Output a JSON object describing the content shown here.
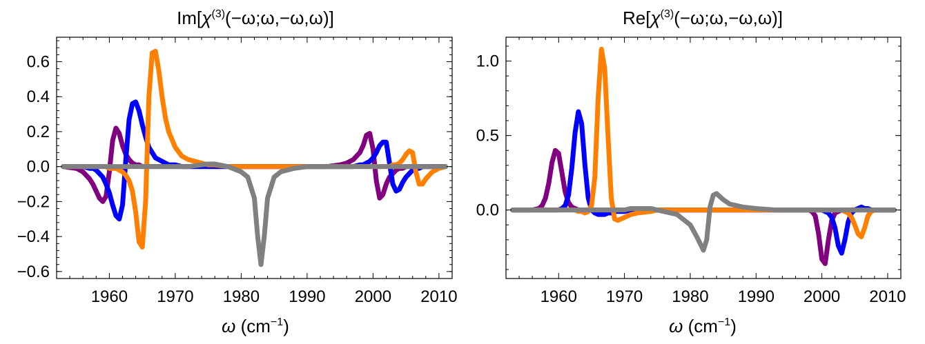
{
  "chart_data": [
    {
      "type": "line",
      "title": "Im[χ(3)(−ω;ω,−ω,ω)]",
      "title_parts": {
        "prefix": "Im[",
        "chi": "χ",
        "sup": "(3)",
        "args": "(−ω;ω,−ω,ω)]"
      },
      "xlabel": "ω (cm−1)",
      "xlabel_parts": {
        "omega": "ω",
        "unit": " (cm",
        "sup": "−1",
        "close": ")"
      },
      "ylabel": "",
      "xlim": [
        1952,
        2012
      ],
      "ylim": [
        -0.64,
        0.74
      ],
      "xticks": [
        1960,
        1970,
        1980,
        1990,
        2000,
        2010
      ],
      "xtick_labels": [
        "1960",
        "1970",
        "1980",
        "1990",
        "2000",
        "2010"
      ],
      "yticks": [
        -0.6,
        -0.4,
        -0.2,
        0.0,
        0.2,
        0.4,
        0.6
      ],
      "ytick_labels": [
        "−0.6",
        "−0.4",
        "−0.2",
        "0.0",
        "0.2",
        "0.4",
        "0.6"
      ],
      "grid": false,
      "legend": "none",
      "x": [
        1953,
        1955,
        1956,
        1957,
        1957.5,
        1958,
        1958.5,
        1959,
        1959.5,
        1960,
        1960.5,
        1961,
        1961.5,
        1962,
        1962.5,
        1963,
        1963.5,
        1964,
        1964.5,
        1965,
        1965.5,
        1966,
        1966.5,
        1967,
        1967.5,
        1968,
        1968.5,
        1969,
        1970,
        1971,
        1972,
        1974,
        1975,
        1976,
        1978,
        1980,
        1981,
        1982,
        1982.5,
        1983,
        1983.5,
        1984,
        1985,
        1986,
        1988,
        1990,
        1993,
        1995,
        1996,
        1997,
        1998,
        1998.5,
        1999,
        1999.5,
        2000,
        2000.5,
        2001,
        2001.5,
        2002,
        2002.5,
        2003,
        2003.5,
        2004,
        2004.5,
        2005,
        2005.5,
        2006,
        2006.5,
        2007,
        2007.5,
        2008,
        2009,
        2010,
        2011
      ],
      "series": [
        {
          "color": "#800080",
          "values": [
            0,
            -0.01,
            -0.03,
            -0.07,
            -0.1,
            -0.14,
            -0.18,
            -0.2,
            -0.17,
            -0.03,
            0.15,
            0.22,
            0.19,
            0.12,
            0.07,
            0.04,
            0.02,
            0.01,
            0.01,
            0,
            0,
            0,
            0,
            0,
            0,
            0,
            0,
            0,
            0,
            0,
            0,
            0,
            0,
            0,
            0,
            0,
            0,
            0,
            0,
            0,
            0,
            0,
            0,
            0,
            0,
            0,
            0,
            0.01,
            0.02,
            0.04,
            0.08,
            0.12,
            0.18,
            0.19,
            0.1,
            -0.08,
            -0.18,
            -0.16,
            -0.1,
            -0.06,
            -0.04,
            -0.02,
            -0.01,
            -0.01,
            0,
            0,
            0,
            0,
            0,
            0,
            0,
            0,
            0,
            0
          ]
        },
        {
          "color": "#0000ff",
          "values": [
            0,
            0,
            0,
            -0.01,
            -0.01,
            -0.02,
            -0.04,
            -0.06,
            -0.1,
            -0.15,
            -0.22,
            -0.28,
            -0.3,
            -0.22,
            0.04,
            0.27,
            0.36,
            0.37,
            0.32,
            0.24,
            0.17,
            0.11,
            0.08,
            0.05,
            0.04,
            0.03,
            0.02,
            0.01,
            0.01,
            0,
            0,
            0,
            0,
            0,
            0,
            0,
            0,
            0,
            0,
            0,
            0,
            0,
            0,
            0,
            0,
            0,
            0,
            0,
            0,
            0,
            0.01,
            0.01,
            0.02,
            0.03,
            0.05,
            0.08,
            0.12,
            0.14,
            0.14,
            0.02,
            -0.1,
            -0.14,
            -0.13,
            -0.09,
            -0.06,
            -0.04,
            -0.02,
            -0.01,
            -0.01,
            0,
            0,
            0,
            0,
            0
          ]
        },
        {
          "color": "#ff8000",
          "values": [
            0,
            0,
            0,
            0,
            0,
            0,
            0,
            0,
            0,
            -0.01,
            -0.01,
            -0.01,
            -0.02,
            -0.03,
            -0.05,
            -0.08,
            -0.14,
            -0.26,
            -0.43,
            -0.46,
            -0.2,
            0.4,
            0.65,
            0.66,
            0.55,
            0.4,
            0.28,
            0.2,
            0.11,
            0.06,
            0.04,
            0.02,
            0.01,
            0.01,
            0,
            0,
            0,
            0,
            0,
            0,
            0,
            0,
            0,
            0,
            0,
            0,
            0,
            0,
            0,
            0,
            0,
            0,
            0,
            0,
            0,
            0,
            0,
            0,
            0,
            0,
            0.01,
            0.01,
            0.02,
            0.04,
            0.07,
            0.09,
            0.08,
            -0.03,
            -0.1,
            -0.1,
            -0.07,
            -0.03,
            -0.01,
            0
          ]
        },
        {
          "color": "#808080",
          "values": [
            0,
            0,
            0,
            0,
            0,
            0,
            0,
            0,
            0,
            0,
            0,
            0,
            0,
            0,
            0,
            0,
            0,
            0,
            0,
            0,
            0,
            0,
            0,
            0,
            0,
            0,
            0,
            0,
            0,
            0,
            0,
            0.01,
            0.015,
            0.015,
            0,
            -0.03,
            -0.06,
            -0.18,
            -0.4,
            -0.56,
            -0.4,
            -0.18,
            -0.06,
            -0.03,
            -0.01,
            0,
            0,
            0,
            0,
            0,
            0,
            0,
            0,
            0,
            0,
            0,
            0,
            0,
            0,
            0,
            0,
            0,
            0,
            0,
            0,
            0,
            0,
            0,
            0,
            0,
            0,
            0,
            0,
            0
          ]
        }
      ]
    },
    {
      "type": "line",
      "title": "Re[χ(3)(−ω;ω,−ω,ω)]",
      "title_parts": {
        "prefix": "Re[",
        "chi": "χ",
        "sup": "(3)",
        "args": "(−ω;ω,−ω,ω)]"
      },
      "xlabel": "ω (cm−1)",
      "xlabel_parts": {
        "omega": "ω",
        "unit": " (cm",
        "sup": "−1",
        "close": ")"
      },
      "ylabel": "",
      "xlim": [
        1952,
        2012
      ],
      "ylim": [
        -0.46,
        1.16
      ],
      "xticks": [
        1960,
        1970,
        1980,
        1990,
        2000,
        2010
      ],
      "xtick_labels": [
        "1960",
        "1970",
        "1980",
        "1990",
        "2000",
        "2010"
      ],
      "yticks": [
        0.0,
        0.5,
        1.0
      ],
      "ytick_labels": [
        "0.0",
        "0.5",
        "1.0"
      ],
      "grid": false,
      "legend": "none",
      "x": [
        1953,
        1955,
        1956,
        1957,
        1957.5,
        1958,
        1958.5,
        1959,
        1959.5,
        1960,
        1960.5,
        1961,
        1961.5,
        1962,
        1962.5,
        1963,
        1963.5,
        1964,
        1964.5,
        1965,
        1965.5,
        1966,
        1966.5,
        1967,
        1967.5,
        1968,
        1968.5,
        1969,
        1970,
        1971,
        1972,
        1974,
        1975,
        1976,
        1978,
        1980,
        1981,
        1982,
        1982.5,
        1983,
        1983.5,
        1984,
        1985,
        1986,
        1988,
        1990,
        1993,
        1995,
        1996,
        1997,
        1998,
        1998.5,
        1999,
        1999.5,
        2000,
        2000.5,
        2001,
        2001.5,
        2002,
        2002.5,
        2003,
        2003.5,
        2004,
        2004.5,
        2005,
        2005.5,
        2006,
        2006.5,
        2007,
        2007.5,
        2008,
        2009,
        2010,
        2011
      ],
      "series": [
        {
          "color": "#800080",
          "values": [
            0,
            0,
            0,
            0.01,
            0.03,
            0.08,
            0.18,
            0.32,
            0.4,
            0.38,
            0.25,
            0.12,
            0.05,
            0.02,
            0.01,
            0,
            0,
            0,
            0,
            0,
            0,
            0,
            0,
            0,
            0,
            0,
            0,
            0,
            0,
            0,
            0,
            0,
            0,
            0,
            0,
            0,
            0,
            0,
            0,
            0,
            0,
            0,
            0,
            0,
            0,
            0,
            0,
            0,
            0,
            0,
            0,
            -0.01,
            -0.04,
            -0.16,
            -0.33,
            -0.36,
            -0.2,
            -0.07,
            -0.02,
            -0.01,
            0,
            0,
            0,
            0,
            0,
            0,
            0,
            0,
            0,
            0,
            0,
            0,
            0,
            0
          ]
        },
        {
          "color": "#0000ff",
          "values": [
            0,
            0,
            0,
            0,
            0,
            0,
            0,
            0,
            0,
            0,
            0.01,
            0.03,
            0.1,
            0.28,
            0.52,
            0.66,
            0.58,
            0.3,
            0.08,
            0,
            -0.02,
            -0.03,
            -0.03,
            -0.03,
            -0.02,
            -0.02,
            -0.01,
            -0.01,
            -0.01,
            0,
            0,
            0,
            0,
            0,
            0,
            0,
            0,
            0,
            0,
            0,
            0,
            0,
            0,
            0,
            0,
            0,
            0,
            0,
            0,
            0,
            0,
            0,
            0,
            0,
            0,
            -0.01,
            -0.02,
            -0.05,
            -0.12,
            -0.24,
            -0.29,
            -0.2,
            -0.08,
            -0.02,
            0,
            0.01,
            0.02,
            0.01,
            0.01,
            0,
            0,
            0,
            0,
            0
          ]
        },
        {
          "color": "#ff8000",
          "values": [
            0,
            0,
            0,
            0,
            0,
            0,
            0,
            0,
            0,
            0,
            0,
            0,
            0,
            0,
            0,
            -0.01,
            -0.01,
            -0.02,
            -0.01,
            0.03,
            0.22,
            0.75,
            1.08,
            0.95,
            0.5,
            0.08,
            -0.06,
            -0.07,
            -0.05,
            -0.03,
            -0.02,
            -0.01,
            0,
            0,
            0,
            0,
            0,
            0,
            0,
            0,
            0,
            0,
            0,
            0,
            0,
            0,
            0,
            0,
            0,
            0,
            0,
            0,
            0,
            0,
            0,
            0,
            0,
            0,
            0,
            0,
            0,
            -0.01,
            -0.02,
            -0.05,
            -0.1,
            -0.16,
            -0.18,
            -0.12,
            -0.04,
            -0.01,
            0,
            0,
            0,
            0
          ]
        },
        {
          "color": "#808080",
          "values": [
            0,
            0,
            0,
            0,
            0,
            0,
            0,
            0,
            0,
            0,
            0,
            0,
            0,
            0,
            0,
            0,
            0,
            0,
            0,
            0,
            0,
            0,
            0,
            0,
            0,
            0,
            0,
            0,
            0,
            0.01,
            0.01,
            0.01,
            0,
            -0.01,
            -0.03,
            -0.1,
            -0.18,
            -0.27,
            -0.2,
            0.02,
            0.1,
            0.11,
            0.07,
            0.04,
            0.02,
            0.01,
            0,
            0,
            0,
            0,
            0,
            0,
            0,
            0,
            0,
            0,
            0,
            0,
            0,
            0,
            0,
            0,
            0,
            0,
            0,
            0,
            0,
            0,
            0,
            0,
            0,
            0,
            0,
            0
          ]
        }
      ]
    }
  ]
}
